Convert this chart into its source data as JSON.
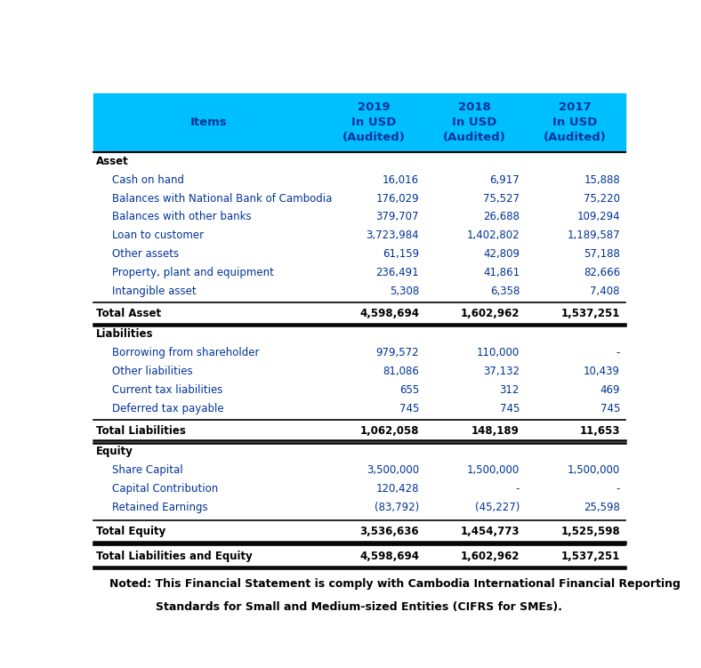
{
  "header_bg": "#00BFFF",
  "header_text_color": "#003399",
  "header_items_label": "Items",
  "rows": [
    {
      "label": "Asset",
      "values": [
        "",
        "",
        ""
      ],
      "style": "section",
      "indent": 0
    },
    {
      "label": "Cash on hand",
      "values": [
        "16,016",
        "6,917",
        "15,888"
      ],
      "style": "normal",
      "indent": 1
    },
    {
      "label": "Balances with National Bank of Cambodia",
      "values": [
        "176,029",
        "75,527",
        "75,220"
      ],
      "style": "normal",
      "indent": 1
    },
    {
      "label": "Balances with other banks",
      "values": [
        "379,707",
        "26,688",
        "109,294"
      ],
      "style": "normal",
      "indent": 1
    },
    {
      "label": "Loan to customer",
      "values": [
        "3,723,984",
        "1,402,802",
        "1,189,587"
      ],
      "style": "normal",
      "indent": 1
    },
    {
      "label": "Other assets",
      "values": [
        "61,159",
        "42,809",
        "57,188"
      ],
      "style": "normal",
      "indent": 1
    },
    {
      "label": "Property, plant and equipment",
      "values": [
        "236,491",
        "41,861",
        "82,666"
      ],
      "style": "normal",
      "indent": 1
    },
    {
      "label": "Intangible asset",
      "values": [
        "5,308",
        "6,358",
        "7,408"
      ],
      "style": "normal",
      "indent": 1
    },
    {
      "label": "Total Asset",
      "values": [
        "4,598,694",
        "1,602,962",
        "1,537,251"
      ],
      "style": "total",
      "indent": 0
    },
    {
      "label": "Liabilities",
      "values": [
        "",
        "",
        ""
      ],
      "style": "section",
      "indent": 0
    },
    {
      "label": "Borrowing from shareholder",
      "values": [
        "979,572",
        "110,000",
        "-"
      ],
      "style": "normal",
      "indent": 1
    },
    {
      "label": "Other liabilities",
      "values": [
        "81,086",
        "37,132",
        "10,439"
      ],
      "style": "normal",
      "indent": 1
    },
    {
      "label": "Current tax liabilities",
      "values": [
        "655",
        "312",
        "469"
      ],
      "style": "normal",
      "indent": 1
    },
    {
      "label": "Deferred tax payable",
      "values": [
        "745",
        "745",
        "745"
      ],
      "style": "normal",
      "indent": 1
    },
    {
      "label": "Total Liabilities",
      "values": [
        "1,062,058",
        "148,189",
        "11,653"
      ],
      "style": "total",
      "indent": 0
    },
    {
      "label": "Equity",
      "values": [
        "",
        "",
        ""
      ],
      "style": "section",
      "indent": 0
    },
    {
      "label": "Share Capital",
      "values": [
        "3,500,000",
        "1,500,000",
        "1,500,000"
      ],
      "style": "normal",
      "indent": 1
    },
    {
      "label": "Capital Contribution",
      "values": [
        "120,428",
        "-",
        "-"
      ],
      "style": "normal",
      "indent": 1
    },
    {
      "label": "Retained Earnings",
      "values": [
        "(83,792)",
        "(45,227)",
        "25,598"
      ],
      "style": "normal",
      "indent": 1
    },
    {
      "label": "Total Equity",
      "values": [
        "3,536,636",
        "1,454,773",
        "1,525,598"
      ],
      "style": "total_spaced",
      "indent": 0
    },
    {
      "label": "Total Liabilities and Equity",
      "values": [
        "4,598,694",
        "1,602,962",
        "1,537,251"
      ],
      "style": "total_spaced",
      "indent": 0
    }
  ],
  "footer_line1": "Noted: This Financial Statement is comply with Cambodia International Financial Reporting",
  "footer_line2": "Standards for Small and Medium-sized Entities (CIFRS for SMEs).",
  "normal_text_color": "#003399",
  "section_text_color": "#000000",
  "total_text_color": "#000000",
  "bg_color": "#FFFFFF",
  "font_size": 8.5,
  "header_font_size": 9.5
}
